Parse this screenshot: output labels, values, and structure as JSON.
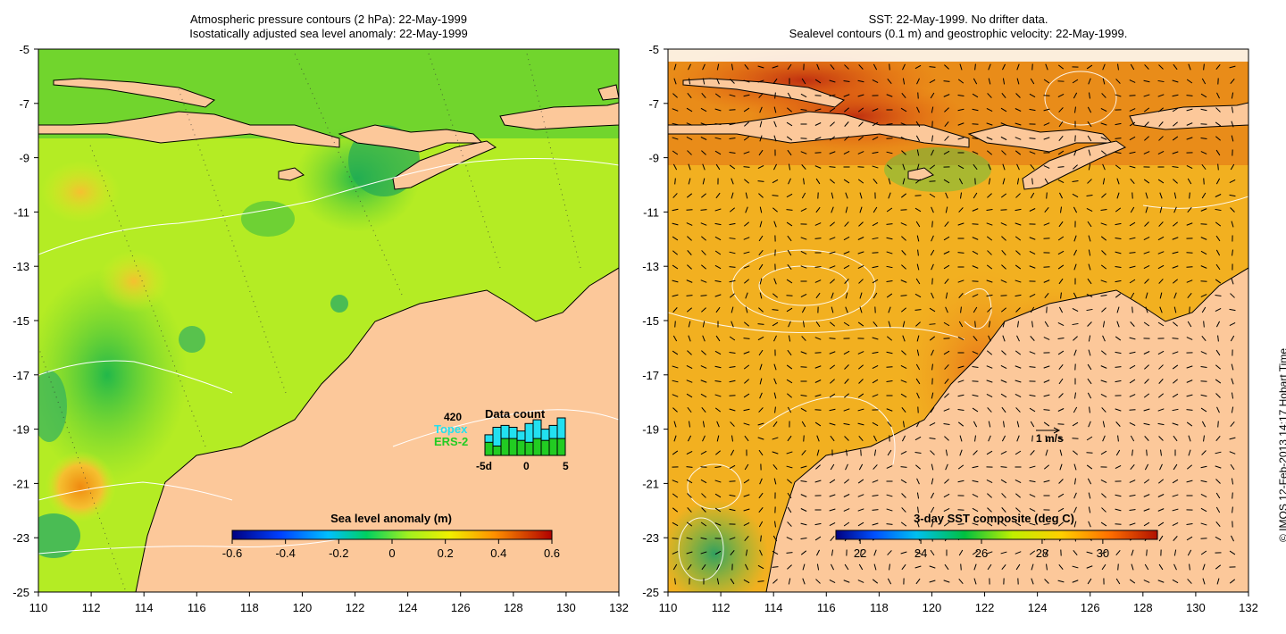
{
  "left_panel": {
    "title_line1": "Atmospheric pressure contours (2 hPa): 22-May-1999",
    "title_line2": "Isostatically adjusted sea level anomaly: 22-May-1999",
    "colorbar": {
      "label": "Sea level anomaly (m)",
      "ticks": [
        "-0.6",
        "-0.4",
        "-0.2",
        "0",
        "0.2",
        "0.4",
        "0.6"
      ],
      "range": [
        -0.6,
        0.6
      ]
    },
    "data_count": {
      "title": "Data count",
      "count_label": "420",
      "topex_label": "Topex",
      "ers2_label": "ERS-2",
      "topex_color": "#22e0f0",
      "ers2_color": "#22cc22",
      "x_ticks": [
        "-5d",
        "0",
        "5"
      ],
      "days": [
        -5,
        -4,
        -3,
        -2,
        -1,
        0,
        1,
        2,
        3,
        4
      ],
      "topex_share": [
        0.55,
        0.75,
        0.8,
        0.75,
        0.65,
        0.85,
        0.95,
        0.7,
        0.8,
        1.0
      ],
      "ers2_share": [
        0.35,
        0.25,
        0.45,
        0.45,
        0.4,
        0.35,
        0.45,
        0.4,
        0.45,
        0.45
      ]
    }
  },
  "right_panel": {
    "title_line1": "SST: 22-May-1999. No drifter data.",
    "title_line2": "Sealevel contours (0.1 m) and geostrophic velocity: 22-May-1999.",
    "colorbar": {
      "label": "3-day SST composite (deg C)",
      "ticks": [
        "22",
        "24",
        "26",
        "28",
        "30"
      ],
      "range": [
        21.2,
        31.8
      ]
    },
    "velocity_scale_label": "1 m/s"
  },
  "axes": {
    "lat_ticks": [
      "-5",
      "-7",
      "-9",
      "-11",
      "-13",
      "-15",
      "-17",
      "-19",
      "-21",
      "-23",
      "-25"
    ],
    "lon_ticks": [
      "110",
      "112",
      "114",
      "116",
      "118",
      "120",
      "122",
      "124",
      "126",
      "128",
      "130",
      "132"
    ],
    "lon_range": [
      110,
      132
    ],
    "lat_range": [
      -25,
      -5
    ]
  },
  "credit": "© IMOS 12-Feb-2013 14:17 Hobart Time",
  "colors": {
    "land": "#fcc89a",
    "sla_base": "#b4ee22",
    "sst_base": "#f2b020"
  }
}
